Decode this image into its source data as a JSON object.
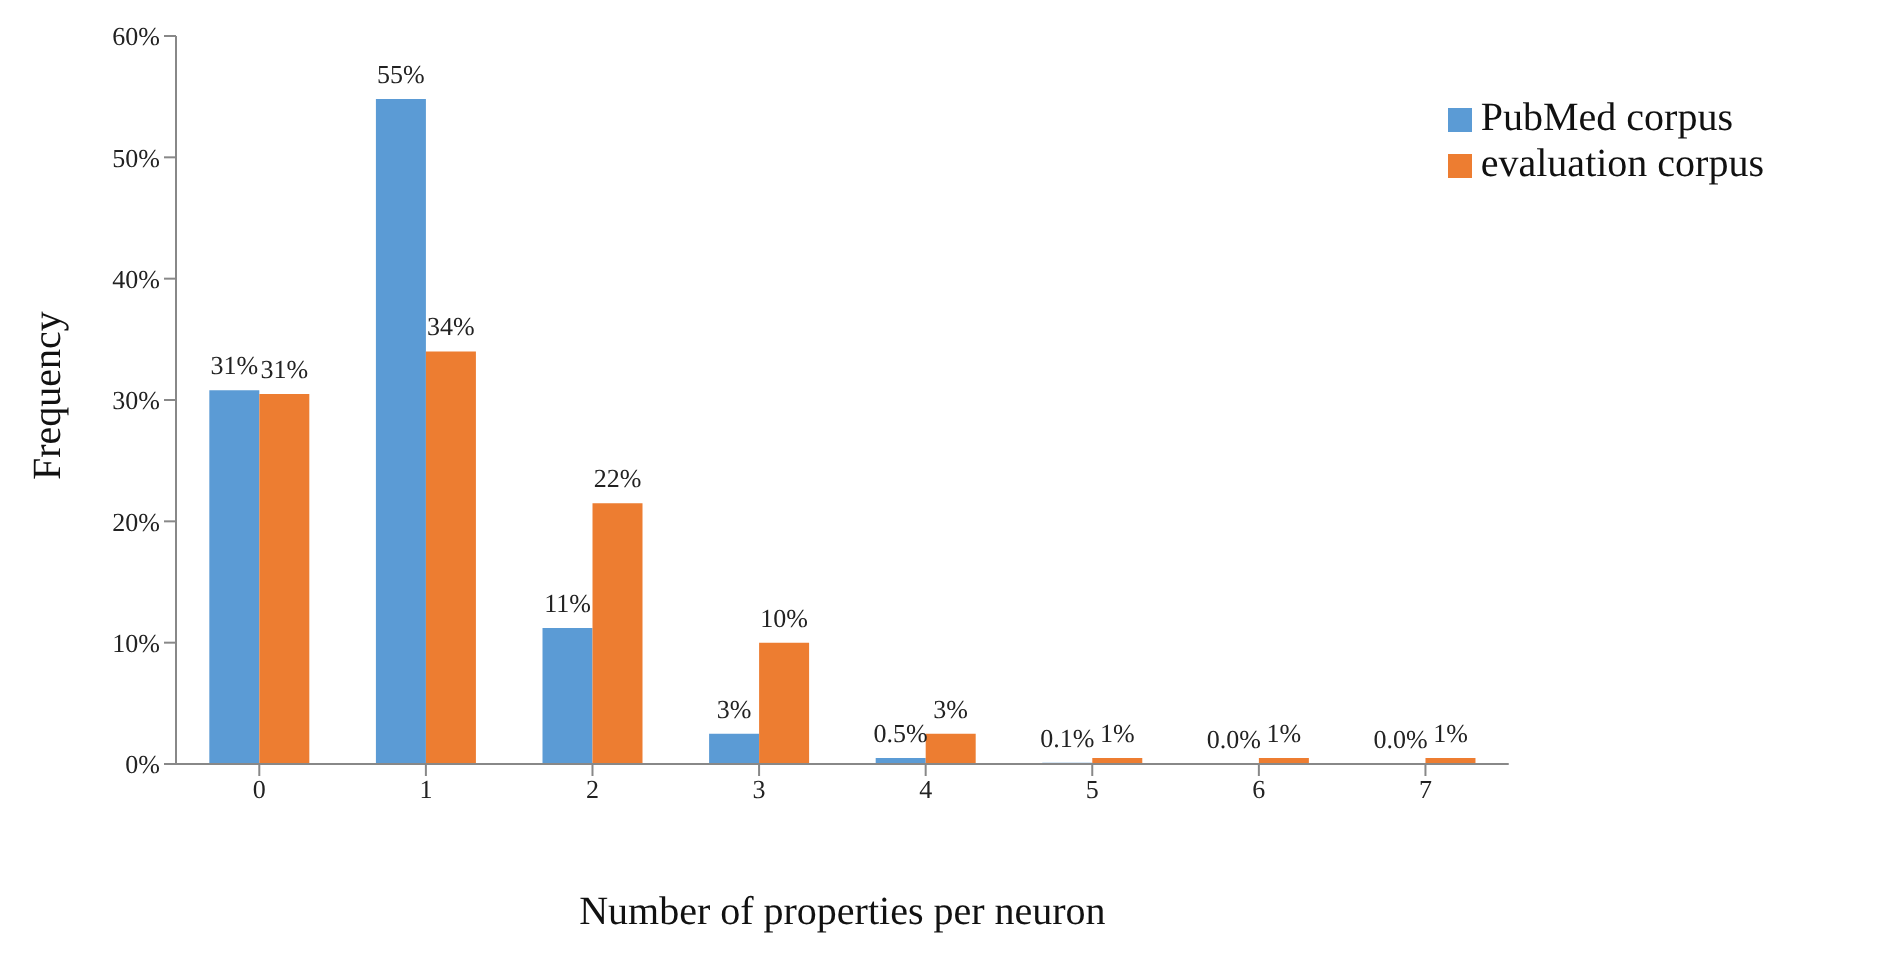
{
  "chart_data": {
    "type": "bar",
    "xlabel": "Number of properties per neuron",
    "ylabel": "Frequency",
    "categories": [
      "0",
      "1",
      "2",
      "3",
      "4",
      "5",
      "6",
      "7"
    ],
    "series": [
      {
        "name": "PubMed corpus",
        "color": "#5b9bd5",
        "values": [
          30.8,
          54.8,
          11.2,
          2.5,
          0.5,
          0.1,
          0.04,
          0.04
        ],
        "value_labels": [
          "31%",
          "55%",
          "11%",
          "3%",
          "0.5%",
          "0.1%",
          "0.0%",
          "0.0%"
        ]
      },
      {
        "name": "evaluation corpus",
        "color": "#ed7d31",
        "values": [
          30.5,
          34.0,
          21.5,
          10.0,
          2.5,
          0.5,
          0.5,
          0.5
        ],
        "value_labels": [
          "31%",
          "34%",
          "22%",
          "10%",
          "3%",
          "1%",
          "1%",
          "1%"
        ]
      }
    ],
    "ylim": [
      0,
      60
    ],
    "yticks": [
      {
        "value": 0,
        "label": "0%"
      },
      {
        "value": 10,
        "label": "10%"
      },
      {
        "value": 20,
        "label": "20%"
      },
      {
        "value": 30,
        "label": "30%"
      },
      {
        "value": 40,
        "label": "40%"
      },
      {
        "value": 50,
        "label": "50%"
      },
      {
        "value": 60,
        "label": "60%"
      }
    ],
    "grid": false,
    "legend": "top right"
  }
}
